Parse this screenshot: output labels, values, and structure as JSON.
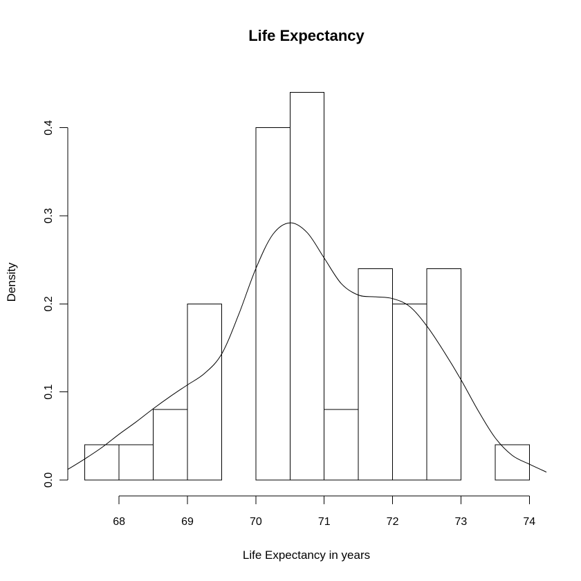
{
  "chart_data": {
    "type": "bar",
    "subtype": "histogram",
    "title": "Life Expectancy",
    "xlabel": "Life Expectancy in years",
    "ylabel": "Density",
    "xlim": [
      67.25,
      74.25
    ],
    "ylim": [
      0,
      0.45
    ],
    "x_ticks": [
      68,
      69,
      70,
      71,
      72,
      73,
      74
    ],
    "y_ticks": [
      0.0,
      0.1,
      0.2,
      0.3,
      0.4
    ],
    "x_tick_labels": [
      "68",
      "69",
      "70",
      "71",
      "72",
      "73",
      "74"
    ],
    "y_tick_labels": [
      "0.0",
      "0.1",
      "0.2",
      "0.3",
      "0.4"
    ],
    "bins": [
      {
        "x0": 67.5,
        "x1": 68.0,
        "density": 0.04
      },
      {
        "x0": 68.0,
        "x1": 68.5,
        "density": 0.04
      },
      {
        "x0": 68.5,
        "x1": 69.0,
        "density": 0.08
      },
      {
        "x0": 69.0,
        "x1": 69.5,
        "density": 0.2
      },
      {
        "x0": 69.5,
        "x1": 70.0,
        "density": 0.0
      },
      {
        "x0": 70.0,
        "x1": 70.5,
        "density": 0.4
      },
      {
        "x0": 70.5,
        "x1": 71.0,
        "density": 0.44
      },
      {
        "x0": 71.0,
        "x1": 71.5,
        "density": 0.08
      },
      {
        "x0": 71.5,
        "x1": 72.0,
        "density": 0.24
      },
      {
        "x0": 72.0,
        "x1": 72.5,
        "density": 0.2
      },
      {
        "x0": 72.5,
        "x1": 73.0,
        "density": 0.24
      },
      {
        "x0": 73.0,
        "x1": 73.5,
        "density": 0.0
      },
      {
        "x0": 73.5,
        "x1": 74.0,
        "density": 0.04
      }
    ],
    "density_curve": {
      "x": [
        67.25,
        67.5,
        67.75,
        68.0,
        68.25,
        68.5,
        68.75,
        69.0,
        69.25,
        69.5,
        69.75,
        70.0,
        70.25,
        70.5,
        70.75,
        71.0,
        71.25,
        71.5,
        71.75,
        72.0,
        72.25,
        72.5,
        72.75,
        73.0,
        73.25,
        73.5,
        73.75,
        74.0,
        74.25
      ],
      "y": [
        0.012,
        0.024,
        0.037,
        0.052,
        0.066,
        0.081,
        0.095,
        0.108,
        0.121,
        0.143,
        0.188,
        0.24,
        0.279,
        0.292,
        0.281,
        0.252,
        0.223,
        0.21,
        0.208,
        0.206,
        0.197,
        0.175,
        0.146,
        0.114,
        0.079,
        0.048,
        0.028,
        0.018,
        0.009
      ]
    },
    "grid": false,
    "legend": "none",
    "colors": {
      "bar_fill": "#ffffff",
      "bar_stroke": "#000000",
      "line": "#000000"
    }
  }
}
